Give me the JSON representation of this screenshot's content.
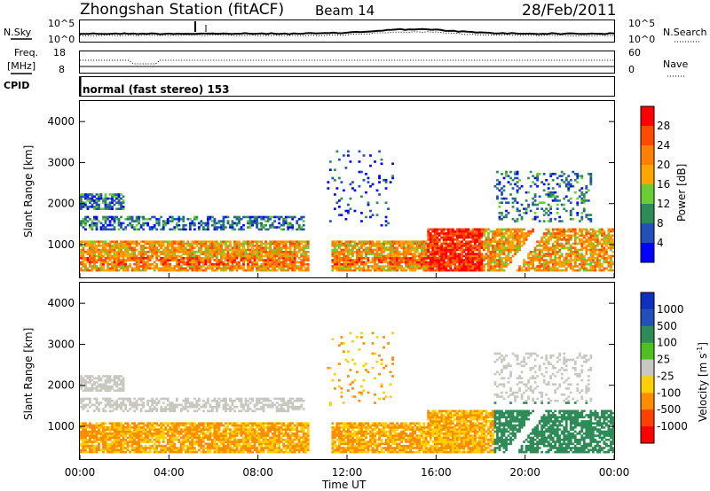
{
  "header": {
    "title": "Zhongshan Station (fitACF)",
    "beam": "Beam 14",
    "date": "28/Feb/2011"
  },
  "nsky_panel": {
    "left_label": "N.Sky",
    "right_label": "N.Search",
    "left_ticks": [
      "10^5",
      "10^0"
    ],
    "right_ticks": [
      "10^5",
      "10^0"
    ]
  },
  "freq_panel": {
    "left_label_1": "Freq.",
    "left_label_2": "[MHz]",
    "right_label": "Nave",
    "left_ticks": [
      "18",
      "8"
    ],
    "right_ticks": [
      "60",
      "0"
    ]
  },
  "cpid": {
    "label": "CPID",
    "mode": "normal (fast stereo) 153"
  },
  "chart_data": [
    {
      "type": "heatmap",
      "title": "",
      "xlabel": "",
      "ylabel": "Slant Range [km]",
      "x_range_hours": [
        0,
        24
      ],
      "ylim": [
        180,
        4500
      ],
      "y_ticks": [
        "1000",
        "2000",
        "3000",
        "4000"
      ],
      "colorbar": {
        "label": "Power [dB]",
        "ticks": [
          "4",
          "8",
          "12",
          "16",
          "20",
          "24",
          "28"
        ],
        "colors": [
          "#0000ff",
          "#2050b8",
          "#2e8b57",
          "#6acd32",
          "#ffa500",
          "#ff7f00",
          "#ff4a00",
          "#ff0000"
        ]
      }
    },
    {
      "type": "heatmap",
      "title": "",
      "xlabel": "Time UT",
      "ylabel": "Slant Range [km]",
      "x_range_hours": [
        0,
        24
      ],
      "ylim": [
        180,
        4500
      ],
      "x_ticks": [
        "00:00",
        "04:00",
        "08:00",
        "12:00",
        "16:00",
        "20:00",
        "00:00"
      ],
      "y_ticks": [
        "1000",
        "2000",
        "3000",
        "4000"
      ],
      "colorbar": {
        "label": "Velocity [m s",
        "label_sup": "-1",
        "label_end": "]",
        "ticks": [
          "1000",
          "500",
          "100",
          "25",
          "-25",
          "-100",
          "-500",
          "-1000"
        ],
        "colors": [
          "#1030c0",
          "#2050b8",
          "#2e8b57",
          "#50c020",
          "#c8c8c0",
          "#ffd000",
          "#ff8c00",
          "#ff4000",
          "#ff0000"
        ]
      }
    }
  ]
}
